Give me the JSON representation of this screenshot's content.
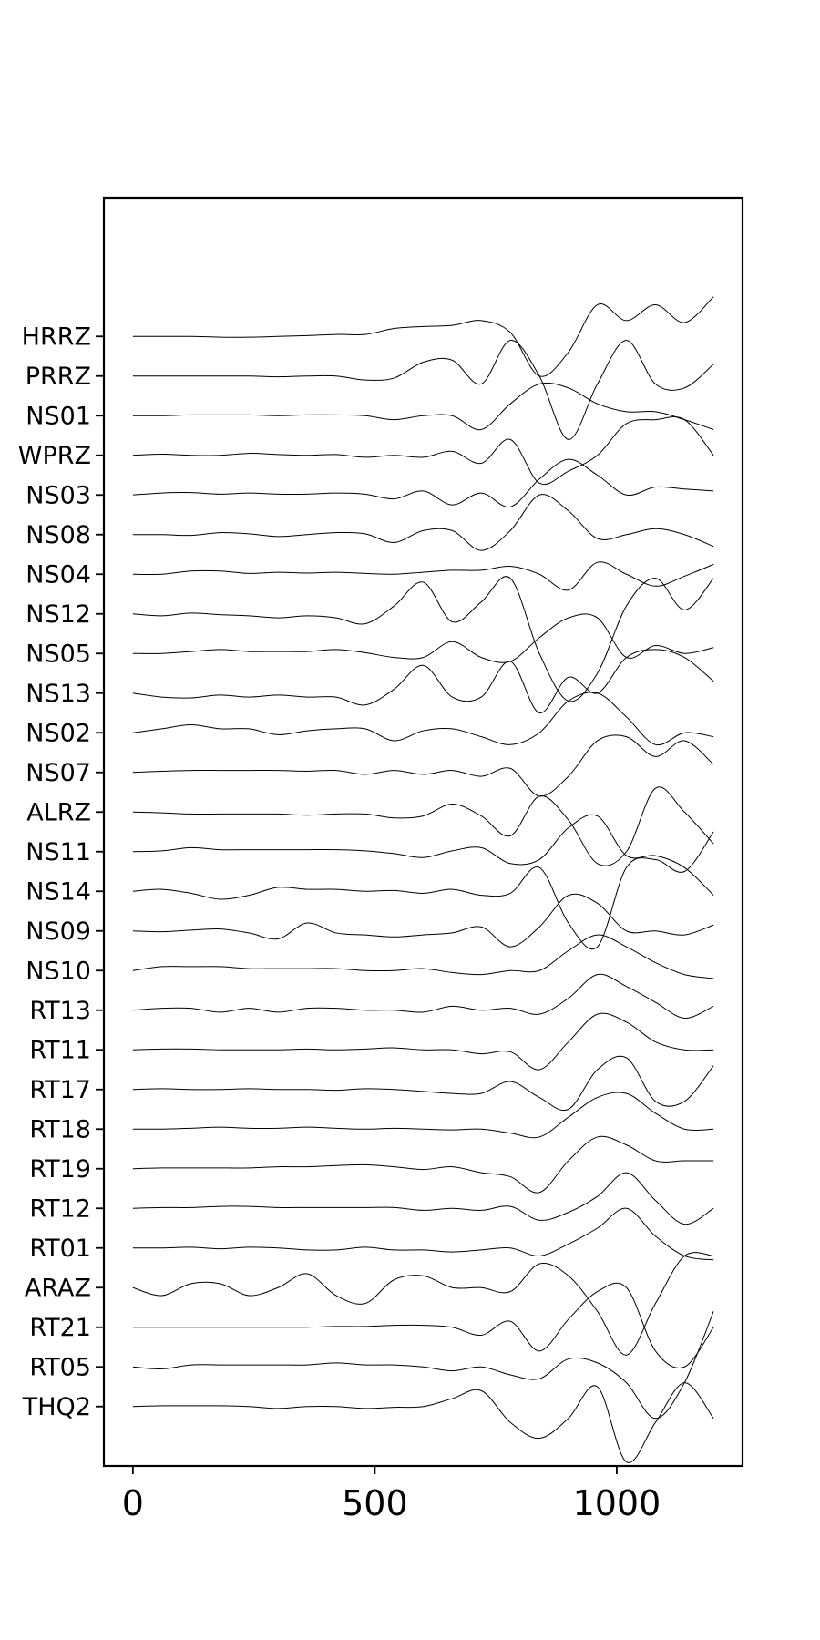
{
  "chart_data": {
    "type": "line",
    "title": "",
    "xlabel": "",
    "ylabel": "",
    "xlim": [
      -60,
      1260
    ],
    "ylim": [
      -1.5,
      30.5
    ],
    "x_ticks": [
      0,
      500,
      1000
    ],
    "x_tick_labels": [
      "0",
      "500",
      "1000"
    ],
    "grid": false,
    "legend": "none",
    "y_tick_labels": [
      "HRRZ",
      "PRRZ",
      "NS01",
      "WPRZ",
      "NS03",
      "NS08",
      "NS04",
      "NS12",
      "NS05",
      "NS13",
      "NS02",
      "NS07",
      "ALRZ",
      "NS11",
      "NS14",
      "NS09",
      "NS10",
      "RT13",
      "RT11",
      "RT17",
      "RT18",
      "RT19",
      "RT12",
      "RT01",
      "ARAZ",
      "RT21",
      "RT05",
      "THQ2"
    ],
    "x": [
      0,
      60,
      120,
      180,
      240,
      300,
      360,
      420,
      480,
      540,
      600,
      660,
      720,
      780,
      840,
      900,
      960,
      1020,
      1080,
      1140,
      1200
    ],
    "series": [
      {
        "station": "HRRZ",
        "offset": 27,
        "values": [
          0,
          0,
          0,
          -0.02,
          -0.02,
          0,
          0.02,
          0.05,
          0.05,
          0.2,
          0.25,
          0.28,
          0.4,
          0.1,
          -1.0,
          -0.4,
          0.8,
          0.4,
          0.8,
          0.35,
          1.0
        ]
      },
      {
        "station": "PRRZ",
        "offset": 26,
        "values": [
          0,
          0,
          0,
          0,
          0,
          -0.02,
          0,
          0,
          -0.1,
          -0.05,
          0.35,
          0.4,
          -0.2,
          0.9,
          0.0,
          -1.6,
          -0.2,
          0.9,
          -0.2,
          -0.3,
          0.3
        ]
      },
      {
        "station": "NS01",
        "offset": 25,
        "values": [
          0,
          0,
          0.02,
          0.02,
          0.02,
          0,
          0.02,
          0.02,
          0,
          -0.1,
          0,
          0,
          -0.35,
          0.3,
          0.8,
          0.7,
          0.3,
          0.1,
          0.1,
          -0.1,
          -0.35
        ]
      },
      {
        "station": "WPRZ",
        "offset": 24,
        "values": [
          0,
          0.03,
          0,
          0,
          0.05,
          0.02,
          0,
          0.02,
          -0.05,
          0,
          -0.05,
          0.1,
          -0.2,
          0.4,
          -0.7,
          -0.4,
          0.0,
          0.8,
          0.9,
          0.9,
          0.0
        ]
      },
      {
        "station": "NS03",
        "offset": 23,
        "values": [
          0,
          0.05,
          0.06,
          0.02,
          0.05,
          0.02,
          0.02,
          0.05,
          0.02,
          -0.1,
          0.1,
          -0.25,
          0.05,
          -0.3,
          0.4,
          0.9,
          0.5,
          0.0,
          0.2,
          0.15,
          0.1
        ]
      },
      {
        "station": "NS08",
        "offset": 22,
        "values": [
          0,
          0,
          -0.02,
          0.05,
          0.02,
          -0.05,
          0,
          0.05,
          0.02,
          -0.2,
          0.1,
          0.1,
          -0.4,
          0.1,
          1.0,
          0.6,
          -0.1,
          0.0,
          0.15,
          0.0,
          -0.3
        ]
      },
      {
        "station": "NS04",
        "offset": 21,
        "values": [
          0,
          0,
          0.08,
          0.08,
          0.02,
          0.05,
          0.03,
          0.05,
          0.02,
          0,
          0.05,
          0.1,
          0.1,
          0.2,
          0.0,
          -0.4,
          0.3,
          0.0,
          -0.3,
          -0.05,
          0.25
        ]
      },
      {
        "station": "NS12",
        "offset": 20,
        "values": [
          0,
          -0.05,
          0.02,
          -0.02,
          -0.05,
          -0.1,
          -0.05,
          -0.1,
          -0.25,
          0.2,
          0.8,
          -0.2,
          0.3,
          0.9,
          -1.0,
          -2.2,
          -1.5,
          0.2,
          0.9,
          0.1,
          0.9
        ]
      },
      {
        "station": "NS05",
        "offset": 19,
        "values": [
          0,
          0,
          0.05,
          0.1,
          0.05,
          0.05,
          0.05,
          0.1,
          0.02,
          -0.1,
          -0.1,
          0.3,
          -0.1,
          -0.2,
          0.4,
          0.9,
          0.9,
          -0.1,
          0.2,
          0.0,
          0.15
        ]
      },
      {
        "station": "NS13",
        "offset": 18,
        "values": [
          0,
          -0.1,
          -0.12,
          -0.05,
          -0.1,
          -0.05,
          -0.1,
          -0.1,
          -0.3,
          0.1,
          0.7,
          -0.1,
          -0.1,
          0.8,
          -0.5,
          0.4,
          0.0,
          0.9,
          1.1,
          0.9,
          0.3
        ]
      },
      {
        "station": "NS02",
        "offset": 17,
        "values": [
          0,
          0.1,
          0.2,
          0.1,
          0.1,
          -0.05,
          0.05,
          0.1,
          0.1,
          -0.2,
          0.05,
          0.1,
          -0.1,
          -0.3,
          0.0,
          0.8,
          1.0,
          0.4,
          -0.3,
          0.0,
          -0.1
        ]
      },
      {
        "station": "NS07",
        "offset": 16,
        "values": [
          0,
          0.03,
          0.05,
          0.05,
          0.05,
          0.05,
          0.03,
          0.05,
          -0.05,
          0.05,
          -0.05,
          0.05,
          -0.1,
          0.1,
          -0.6,
          -0.1,
          0.8,
          0.9,
          0.4,
          0.8,
          0.2
        ]
      },
      {
        "station": "ALRZ",
        "offset": 15,
        "values": [
          0,
          -0.02,
          -0.05,
          -0.05,
          -0.05,
          -0.05,
          -0.08,
          -0.05,
          -0.05,
          -0.15,
          -0.1,
          0.2,
          -0.1,
          -0.6,
          0.4,
          -0.2,
          -1.3,
          -1.0,
          0.6,
          0.0,
          -0.8
        ]
      },
      {
        "station": "NS11",
        "offset": 14,
        "values": [
          0,
          0.02,
          0.1,
          0.05,
          0.05,
          0.05,
          0.05,
          0.05,
          0.02,
          -0.05,
          -0.15,
          0.02,
          0.1,
          -0.3,
          -0.2,
          0.6,
          0.9,
          -0.1,
          -0.1,
          -0.4,
          -1.1
        ]
      },
      {
        "station": "NS14",
        "offset": 13,
        "values": [
          0,
          0.05,
          -0.05,
          -0.2,
          -0.1,
          0.1,
          0.05,
          0.05,
          0.0,
          0.02,
          -0.05,
          0.05,
          -0.1,
          -0.05,
          0.6,
          -0.8,
          -1.4,
          0.6,
          0.8,
          0.5,
          1.5
        ]
      },
      {
        "station": "NS09",
        "offset": 12,
        "values": [
          0,
          -0.02,
          0.02,
          0.05,
          -0.05,
          -0.2,
          0.2,
          -0.05,
          -0.1,
          -0.15,
          -0.1,
          -0.05,
          0.1,
          -0.4,
          0.1,
          0.9,
          0.7,
          0.0,
          0.0,
          -0.1,
          0.15
        ]
      },
      {
        "station": "NS10",
        "offset": 11,
        "values": [
          0,
          0.1,
          0.1,
          0.1,
          0.05,
          0.05,
          0.05,
          0.05,
          0.0,
          0.0,
          0.05,
          -0.05,
          -0.1,
          0.0,
          0.0,
          0.5,
          0.9,
          0.6,
          0.2,
          -0.1,
          -0.2
        ]
      },
      {
        "station": "RT13",
        "offset": 10,
        "values": [
          0,
          0.05,
          0.05,
          -0.05,
          0.05,
          -0.05,
          0.05,
          0.05,
          0.0,
          0.0,
          -0.05,
          0.1,
          0.0,
          0.05,
          -0.1,
          0.3,
          0.9,
          0.6,
          0.2,
          -0.2,
          0.1
        ]
      },
      {
        "station": "RT11",
        "offset": 9,
        "values": [
          0,
          0.02,
          0.02,
          0.0,
          0.0,
          0.0,
          0.02,
          0.0,
          0.02,
          0.05,
          0.0,
          0.0,
          -0.1,
          -0.05,
          -0.5,
          0.2,
          0.9,
          0.7,
          0.2,
          0.0,
          0.0
        ]
      },
      {
        "station": "RT17",
        "offset": 8,
        "values": [
          0,
          0.02,
          0.0,
          0.0,
          0.02,
          0.0,
          0.0,
          -0.02,
          0.02,
          0.0,
          -0.05,
          -0.1,
          -0.1,
          0.2,
          -0.2,
          -0.5,
          0.5,
          0.8,
          -0.3,
          -0.3,
          0.6
        ]
      },
      {
        "station": "RT18",
        "offset": 7,
        "values": [
          0,
          0.0,
          0.02,
          0.05,
          0.02,
          0.02,
          0.05,
          0.02,
          0.0,
          0.02,
          0.0,
          -0.02,
          0.0,
          -0.1,
          -0.2,
          0.3,
          0.8,
          0.9,
          0.4,
          0.0,
          0.0
        ]
      },
      {
        "station": "RT19",
        "offset": 6,
        "values": [
          0,
          0.02,
          0.02,
          0.02,
          0.02,
          0.05,
          0.05,
          0.08,
          0.1,
          0.05,
          -0.02,
          0.05,
          -0.1,
          -0.2,
          -0.6,
          0.2,
          0.8,
          0.6,
          0.2,
          0.2,
          0.2
        ]
      },
      {
        "station": "RT12",
        "offset": 5,
        "values": [
          0,
          0.02,
          0.02,
          0.05,
          0.05,
          0.02,
          0.02,
          0.02,
          0.02,
          0.02,
          -0.05,
          0.0,
          -0.05,
          0.05,
          -0.3,
          -0.1,
          0.3,
          0.9,
          0.2,
          -0.4,
          0.0
        ]
      },
      {
        "station": "RT01",
        "offset": 4,
        "values": [
          0,
          0.0,
          0.02,
          -0.02,
          0.02,
          0.0,
          -0.05,
          -0.05,
          0.02,
          -0.05,
          -0.05,
          -0.1,
          -0.05,
          0.0,
          -0.2,
          0.1,
          0.5,
          1.0,
          0.3,
          -0.2,
          -0.3
        ]
      },
      {
        "station": "ARAZ",
        "offset": 3,
        "values": [
          0,
          -0.2,
          0.1,
          0.1,
          -0.2,
          0.0,
          0.35,
          -0.2,
          -0.4,
          0.2,
          0.3,
          0.0,
          0.0,
          -0.1,
          0.6,
          0.3,
          -0.6,
          -1.7,
          -0.4,
          0.8,
          0.8
        ]
      },
      {
        "station": "RT21",
        "offset": 2,
        "values": [
          0,
          0.0,
          0.0,
          0.0,
          0.0,
          0.0,
          0.0,
          0.02,
          0.02,
          0.05,
          0.05,
          0.0,
          -0.2,
          0.15,
          -0.6,
          0.2,
          0.9,
          1.0,
          -0.6,
          -1.0,
          0.0
        ]
      },
      {
        "station": "RT05",
        "offset": 1,
        "values": [
          0,
          -0.05,
          0.05,
          0.05,
          0.05,
          0.05,
          0.05,
          0.1,
          0.05,
          0.05,
          0.0,
          -0.1,
          0.0,
          -0.2,
          -0.3,
          0.2,
          0.1,
          -0.4,
          -1.3,
          -0.4,
          1.4
        ]
      },
      {
        "station": "THQ2",
        "offset": 0,
        "values": [
          0,
          0.02,
          0.02,
          0.02,
          0.0,
          -0.05,
          0.0,
          0.0,
          -0.05,
          -0.02,
          0.0,
          0.2,
          0.4,
          -0.4,
          -0.8,
          -0.3,
          0.5,
          -1.4,
          -0.4,
          0.6,
          -0.3
        ]
      }
    ]
  }
}
